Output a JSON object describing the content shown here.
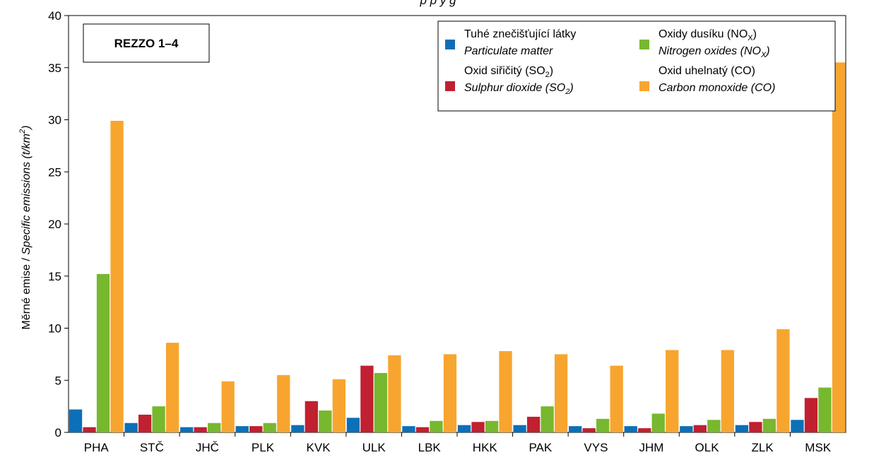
{
  "chart_data": {
    "type": "bar",
    "title_partial": "p                                    p                         y g",
    "box_label": "REZZO 1–4",
    "ylabel_cz": "Měrné emise",
    "ylabel_sep": " / ",
    "ylabel_en": "Specific emissions (t/km",
    "ylabel_sup": "2",
    "ylabel_close": ")",
    "ylim": [
      0,
      40
    ],
    "yticks": [
      "0",
      "5",
      "10",
      "15",
      "20",
      "25",
      "30",
      "35",
      "40"
    ],
    "categories": [
      "PHA",
      "STČ",
      "JHČ",
      "PLK",
      "KVK",
      "ULK",
      "LBK",
      "HKK",
      "PAK",
      "VYS",
      "JHM",
      "OLK",
      "ZLK",
      "MSK"
    ],
    "series": [
      {
        "name": "Tuhé znečišťující látky / Particulate matter",
        "color": "#0b70b8",
        "values": [
          2.2,
          0.9,
          0.5,
          0.6,
          0.7,
          1.4,
          0.6,
          0.7,
          0.7,
          0.6,
          0.6,
          0.6,
          0.7,
          1.2
        ]
      },
      {
        "name": "Oxid siřičitý (SO2) / Sulphur dioxide (SO2)",
        "color": "#c0202f",
        "values": [
          0.5,
          1.7,
          0.5,
          0.6,
          3.0,
          6.4,
          0.5,
          1.0,
          1.5,
          0.4,
          0.4,
          0.7,
          1.0,
          3.3
        ]
      },
      {
        "name": "Oxidy dusíku (NOX) / Nitrogen oxides (NOX)",
        "color": "#77b82f",
        "values": [
          15.2,
          2.5,
          0.9,
          0.9,
          2.1,
          5.7,
          1.1,
          1.1,
          2.5,
          1.3,
          1.8,
          1.2,
          1.3,
          4.3
        ]
      },
      {
        "name": "Oxid uhelnatý (CO) / Carbon monoxide (CO)",
        "color": "#f7a52f",
        "values": [
          29.9,
          8.6,
          4.9,
          5.5,
          5.1,
          7.4,
          7.5,
          7.8,
          7.5,
          6.4,
          7.9,
          7.9,
          9.9,
          35.5
        ]
      }
    ],
    "legend": [
      {
        "line1": "Tuhé znečišťující látky",
        "line1_sub": "",
        "line1_end": "",
        "line2": "Particulate matter",
        "line2_sub": "",
        "line2_end": "",
        "color": "#0b70b8"
      },
      {
        "line1": "Oxidy dusíku  (NO",
        "line1_sub": "X",
        "line1_end": ")",
        "line2": "Nitrogen oxides (NO",
        "line2_sub": "X",
        "line2_end": ")",
        "color": "#77b82f"
      },
      {
        "line1": "Oxid siřičitý (SO",
        "line1_sub": "2",
        "line1_end": ")",
        "line2": "Sulphur dioxide (SO",
        "line2_sub": "2",
        "line2_end": ")",
        "color": "#c0202f"
      },
      {
        "line1": "Oxid uhelnatý (CO)",
        "line1_sub": "",
        "line1_end": "",
        "line2": "Carbon monoxide (CO)",
        "line2_sub": "",
        "line2_end": "",
        "color": "#f7a52f"
      }
    ],
    "grid": false,
    "legend_position": "top-right"
  }
}
